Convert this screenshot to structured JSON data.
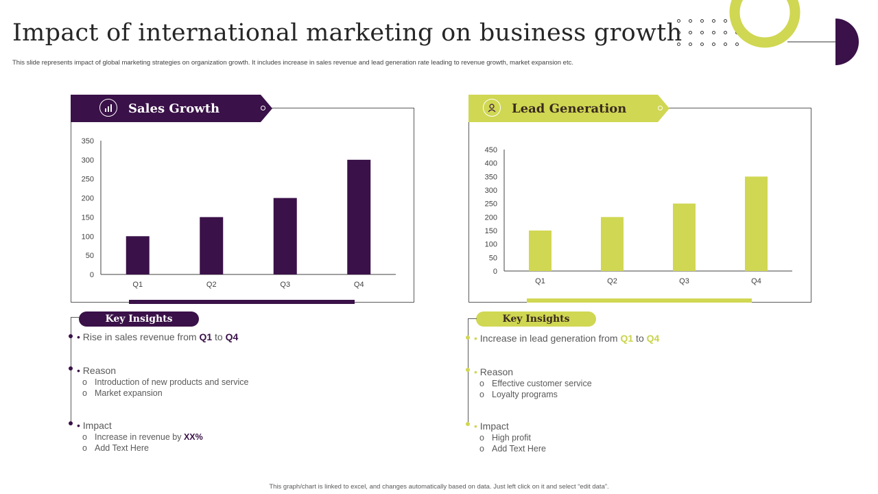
{
  "header": {
    "title": "Impact of international marketing on business growth",
    "subtitle": "This slide represents impact of global marketing strategies on organization growth. It includes increase in sales revenue and lead generation rate leading to revenue growth, market expansion etc."
  },
  "footer": "This graph/chart is linked to excel, and changes automatically based on data. Just left click on it and select “edit data”.",
  "colors": {
    "purple": "#3a1148",
    "green": "#d0d752"
  },
  "sales": {
    "banner_title": "Sales Growth",
    "icon": "chart-icon",
    "key_insights_label": "Key Insights",
    "insight_prefix": "Rise in sales revenue from ",
    "insight_from": "Q1",
    "insight_mid": " to ",
    "insight_to": "Q4",
    "reason_label": "Reason",
    "reasons": [
      "Introduction of new products and service",
      "Market expansion"
    ],
    "impact_label": "Impact",
    "impact_prefix": "Increase in revenue by ",
    "impact_value": "XX%",
    "impact_extra": "Add Text Here"
  },
  "leads": {
    "banner_title": "Lead Generation",
    "icon": "user-icon",
    "key_insights_label": "Key Insights",
    "insight_prefix": "Increase in lead generation from ",
    "insight_from": "Q1",
    "insight_mid": " to ",
    "insight_to": "Q4",
    "reason_label": "Reason",
    "reasons": [
      "Effective customer service",
      "Loyalty programs"
    ],
    "impact_label": "Impact",
    "impacts": [
      "High profit",
      "Add Text Here"
    ]
  },
  "chart_data": [
    {
      "type": "bar",
      "title": "Sales Growth",
      "categories": [
        "Q1",
        "Q2",
        "Q3",
        "Q4"
      ],
      "values": [
        100,
        150,
        200,
        300
      ],
      "ylim": [
        0,
        350
      ],
      "yticks": [
        0,
        50,
        100,
        150,
        200,
        250,
        300,
        350
      ],
      "grid": false,
      "color": "#3a1148"
    },
    {
      "type": "bar",
      "title": "Lead Generation",
      "categories": [
        "Q1",
        "Q2",
        "Q3",
        "Q4"
      ],
      "values": [
        150,
        200,
        250,
        350
      ],
      "ylim": [
        0,
        450
      ],
      "yticks": [
        0,
        50,
        100,
        150,
        200,
        250,
        300,
        350,
        400,
        450
      ],
      "grid": false,
      "color": "#d0d752"
    }
  ]
}
